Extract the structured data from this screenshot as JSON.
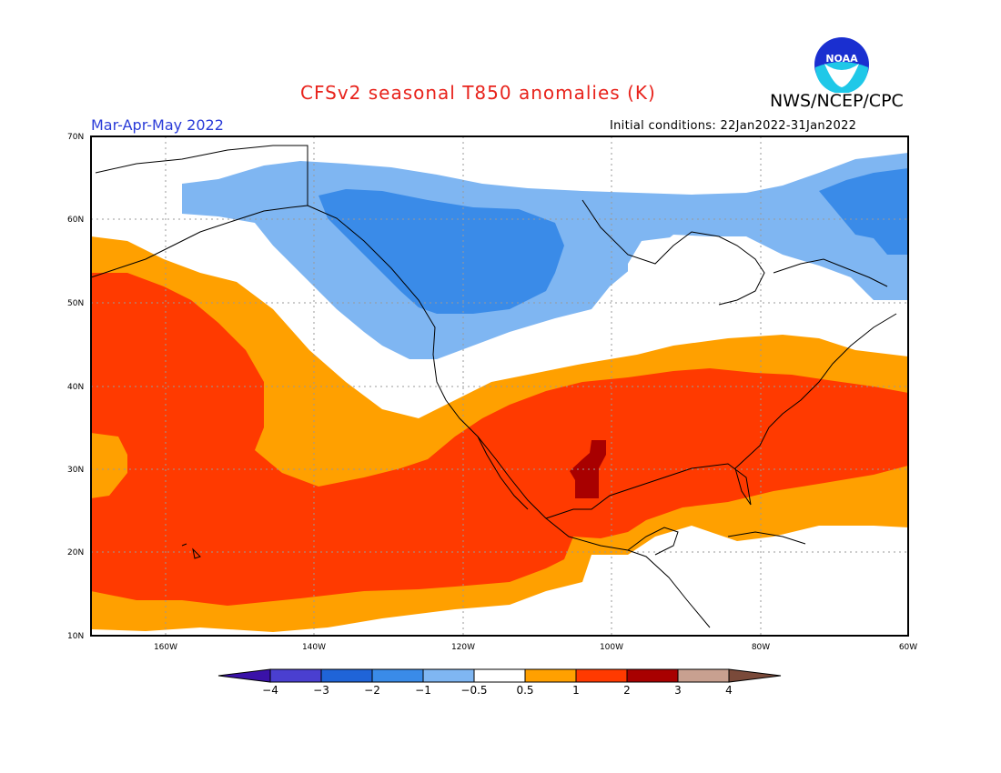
{
  "title": "CFSv2 seasonal T850 anomalies (K)",
  "org": "NWS/NCEP/CPC",
  "logo_text": "NOAA",
  "period": "Mar-Apr-May 2022",
  "init": "Initial conditions: 22Jan2022-31Jan2022",
  "lat_labels": [
    "70N",
    "60N",
    "50N",
    "40N",
    "30N",
    "20N",
    "10N"
  ],
  "lon_labels": [
    "160W",
    "140W",
    "120W",
    "100W",
    "80W",
    "60W"
  ],
  "colorbar": {
    "labels": [
      "−4",
      "−3",
      "−2",
      "−1",
      "−0.5",
      "0.5",
      "1",
      "2",
      "3",
      "4"
    ],
    "colors": [
      "#3a12a8",
      "#4a3fd0",
      "#1f64d8",
      "#3a8be8",
      "#7fb6f2",
      "#ffffff",
      "#ffa000",
      "#ff3a00",
      "#a80000",
      "#c8a090",
      "#7a4a3a"
    ]
  },
  "colors": {
    "anom_ge_2": "#a80000",
    "anom_1_2": "#ff3a00",
    "anom_05_1": "#ffa000",
    "anom_m1_m05": "#7fb6f2",
    "anom_m2_m1": "#3a8be8",
    "neutral": "#ffffff"
  }
}
